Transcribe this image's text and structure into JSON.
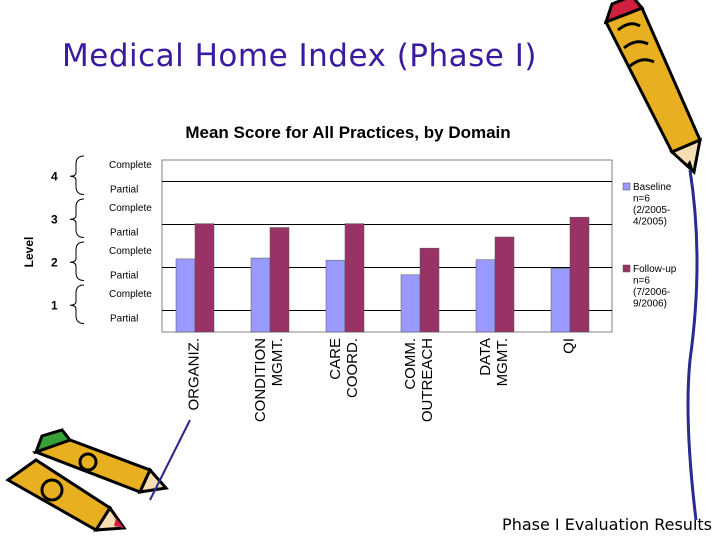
{
  "slide": {
    "title": "Medical Home Index (Phase I)",
    "footer": "Phase I Evaluation Results"
  },
  "chart_data": {
    "type": "bar",
    "title": "Mean Score for All Practices, by Domain",
    "ylabel": "Level",
    "ylim": [
      0.5,
      4.5
    ],
    "grid": true,
    "legend_position": "right",
    "categories": [
      [
        "ORGANIZ."
      ],
      [
        "CONDITION",
        "MGMT."
      ],
      [
        "CARE",
        "COORD."
      ],
      [
        "COMM.",
        "OUTREACH"
      ],
      [
        "DATA",
        "MGMT."
      ],
      [
        "QI"
      ]
    ],
    "series": [
      {
        "name": "Baseline",
        "legend_lines": [
          "Baseline",
          "n=6",
          "(2/2005-",
          "4/2005)"
        ],
        "color": "#9999ff",
        "values": [
          2.2,
          2.22,
          2.17,
          1.83,
          2.18,
          1.98
        ]
      },
      {
        "name": "Follow-up",
        "legend_lines": [
          "Follow-up",
          "n=6",
          "(7/2006-",
          "9/2006)"
        ],
        "color": "#993366",
        "values": [
          3.02,
          2.93,
          3.02,
          2.45,
          2.71,
          3.17
        ]
      }
    ],
    "levels": [
      {
        "number": "4",
        "upper": "Complete",
        "lower": "Partial"
      },
      {
        "number": "3",
        "upper": "Complete",
        "lower": "Partial"
      },
      {
        "number": "2",
        "upper": "Complete",
        "lower": "Partial"
      },
      {
        "number": "1",
        "upper": "Complete",
        "lower": "Partial"
      }
    ]
  },
  "colors": {
    "title": "#3a1aa0",
    "plot_background": "#ffffff",
    "plot_border": "#808080",
    "gridline": "#000000"
  },
  "decorations": [
    "pencil-top-right",
    "pencils-bottom-left"
  ]
}
